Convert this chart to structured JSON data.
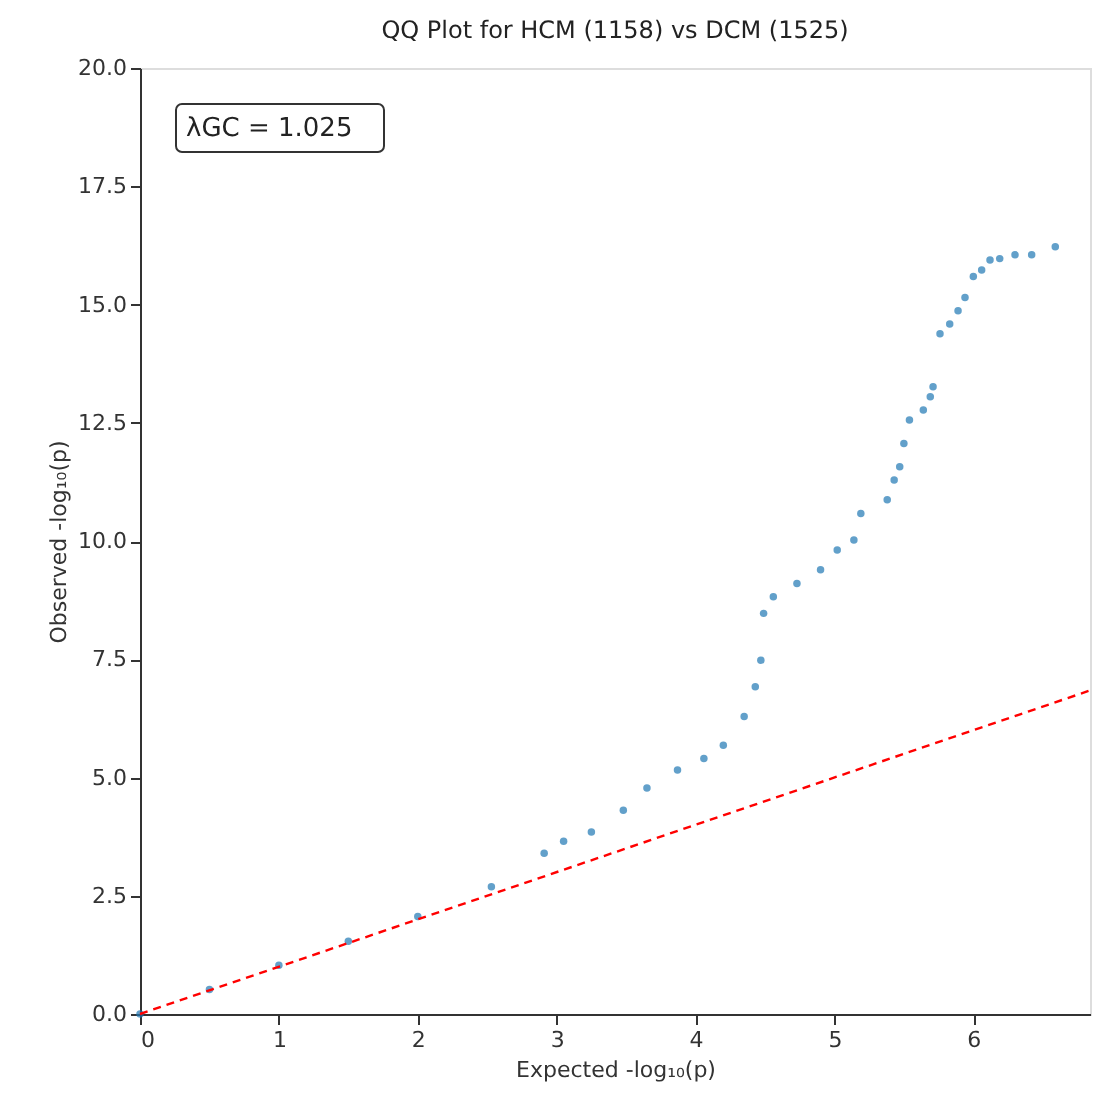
{
  "chart_data": {
    "type": "scatter",
    "title": "QQ Plot for HCM (1158) vs DCM (1525)",
    "xlabel": "Expected -log₁₀(p)",
    "ylabel": "Observed -log₁₀(p)",
    "annotations": [
      "λGC = 1.025"
    ],
    "series": [
      {
        "color": "#1f77b4",
        "marker": "circle",
        "x": [
          0,
          0.5,
          1.0,
          1.5,
          2.0,
          2.53,
          2.91,
          3.05,
          3.25,
          3.48,
          3.65,
          3.87,
          4.06,
          4.2,
          4.35,
          4.43,
          4.47,
          4.49,
          4.56,
          4.73,
          4.9,
          5.02,
          5.14,
          5.19,
          5.38,
          5.43,
          5.47,
          5.5,
          5.54,
          5.64,
          5.69,
          5.71,
          5.76,
          5.83,
          5.89,
          5.94,
          6.0,
          6.06,
          6.12,
          6.19,
          6.3,
          6.42,
          6.59
        ],
        "values": [
          0,
          0.52,
          1.03,
          1.54,
          2.06,
          2.69,
          3.4,
          3.65,
          3.85,
          4.31,
          4.78,
          5.16,
          5.4,
          5.68,
          6.29,
          6.92,
          7.48,
          8.47,
          8.82,
          9.1,
          9.39,
          9.81,
          10.02,
          10.58,
          10.87,
          11.29,
          11.57,
          12.06,
          12.56,
          12.77,
          13.05,
          13.26,
          14.38,
          14.59,
          14.87,
          15.15,
          15.59,
          15.73,
          15.94,
          15.97,
          16.05,
          16.05,
          16.22
        ]
      },
      {
        "type": "line",
        "color": "#ff0000",
        "line_style": "dashed",
        "x": [
          0,
          6.84
        ],
        "values": [
          0,
          6.84
        ]
      }
    ],
    "xlim": [
      0,
      6.84
    ],
    "ylim": [
      0,
      20
    ],
    "xticks": [
      0,
      1,
      2,
      3,
      4,
      5,
      6
    ],
    "yticks": [
      {
        "value": 0,
        "label": "0.0"
      },
      {
        "value": 2.5,
        "label": "2.5"
      },
      {
        "value": 5,
        "label": "5.0"
      },
      {
        "value": 7.5,
        "label": "7.5"
      },
      {
        "value": 10,
        "label": "10.0"
      },
      {
        "value": 12.5,
        "label": "12.5"
      },
      {
        "value": 15,
        "label": "15.0"
      },
      {
        "value": 17.5,
        "label": "17.5"
      },
      {
        "value": 20,
        "label": "20.0"
      }
    ],
    "grid": false
  }
}
